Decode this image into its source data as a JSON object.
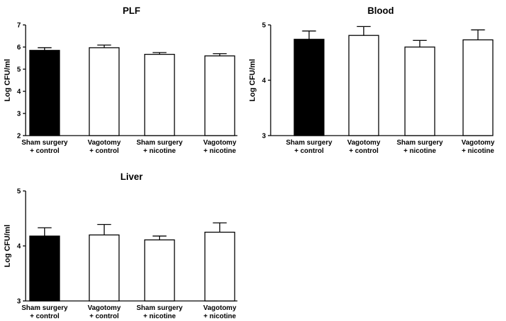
{
  "chart_data": [
    {
      "type": "bar",
      "title": "PLF",
      "ylabel": "Log CFU/ml",
      "ylim": [
        2,
        7
      ],
      "yticks": [
        "2",
        "3",
        "4",
        "5",
        "6",
        "7"
      ],
      "categories": [
        [
          "Sham surgery",
          "+ control"
        ],
        [
          "Vagotomy",
          "+ control"
        ],
        [
          "Sham surgery",
          "+ nicotine"
        ],
        [
          "Vagotomy",
          "+ nicotine"
        ]
      ],
      "values": [
        5.85,
        5.97,
        5.67,
        5.6
      ],
      "errors": [
        0.12,
        0.12,
        0.08,
        0.1
      ],
      "bar_colors": [
        "#000000",
        "#ffffff",
        "#ffffff",
        "#ffffff"
      ]
    },
    {
      "type": "bar",
      "title": "Blood",
      "ylabel": "Log CFU/ml",
      "ylim": [
        3,
        5
      ],
      "yticks": [
        "3",
        "4",
        "5"
      ],
      "categories": [
        [
          "Sham surgery",
          "+ control"
        ],
        [
          "Vagotomy",
          "+ control"
        ],
        [
          "Sham surgery",
          "+ nicotine"
        ],
        [
          "Vagotomy",
          "+ nicotine"
        ]
      ],
      "values": [
        4.74,
        4.81,
        4.6,
        4.73
      ],
      "errors": [
        0.15,
        0.16,
        0.12,
        0.18
      ],
      "bar_colors": [
        "#000000",
        "#ffffff",
        "#ffffff",
        "#ffffff"
      ]
    },
    {
      "type": "bar",
      "title": "Liver",
      "ylabel": "Log CFU/ml",
      "ylim": [
        3,
        5
      ],
      "yticks": [
        "3",
        "4",
        "5"
      ],
      "categories": [
        [
          "Sham surgery",
          "+ control"
        ],
        [
          "Vagotomy",
          "+ control"
        ],
        [
          "Sham surgery",
          "+ nicotine"
        ],
        [
          "Vagotomy",
          "+ nicotine"
        ]
      ],
      "values": [
        4.18,
        4.2,
        4.11,
        4.25
      ],
      "errors": [
        0.15,
        0.19,
        0.07,
        0.17
      ],
      "bar_colors": [
        "#000000",
        "#ffffff",
        "#ffffff",
        "#ffffff"
      ]
    }
  ]
}
